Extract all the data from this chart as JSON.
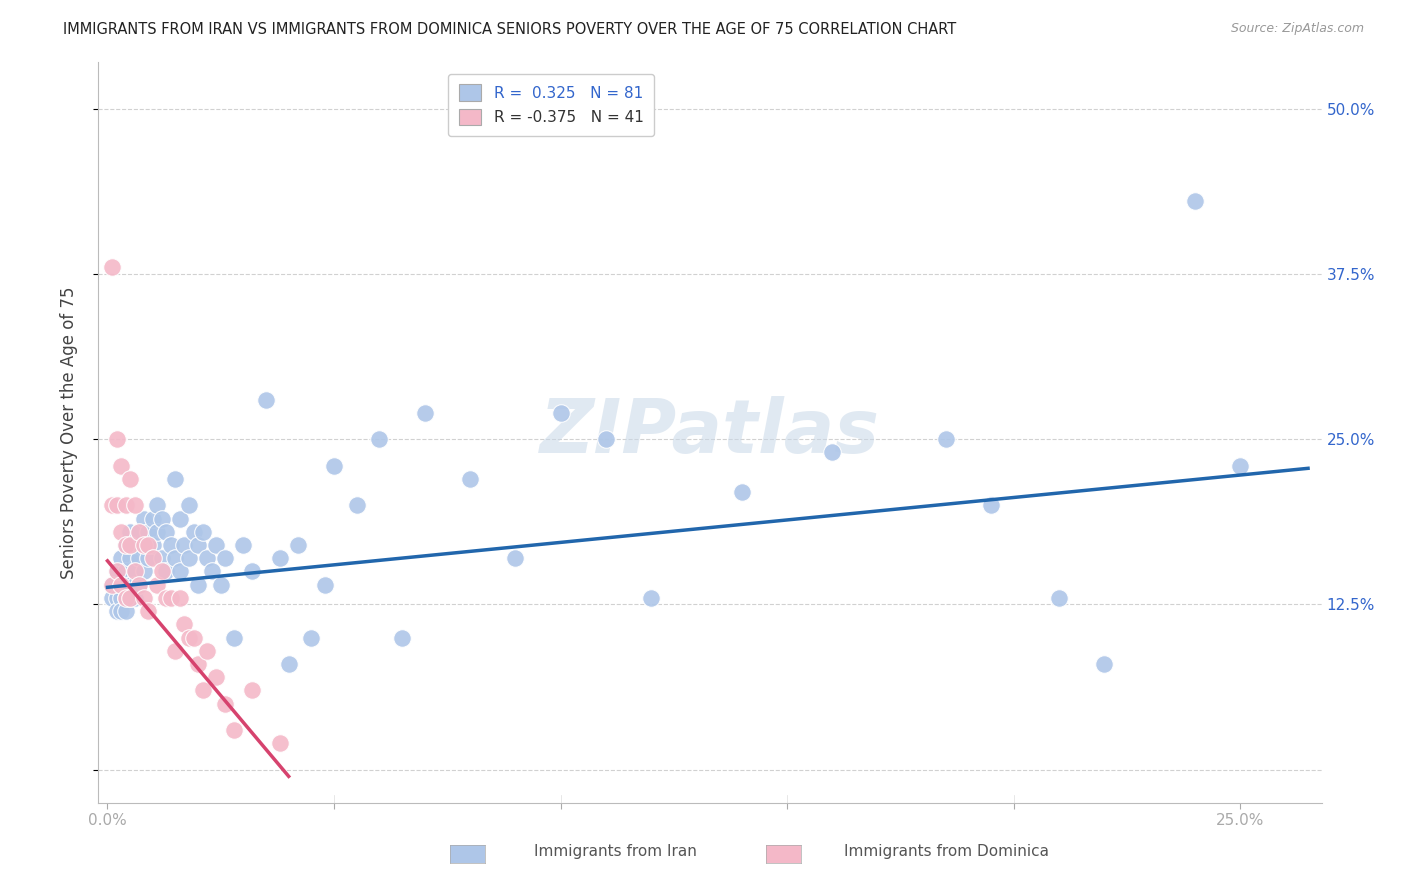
{
  "title": "IMMIGRANTS FROM IRAN VS IMMIGRANTS FROM DOMINICA SENIORS POVERTY OVER THE AGE OF 75 CORRELATION CHART",
  "source": "Source: ZipAtlas.com",
  "ylabel": "Seniors Poverty Over the Age of 75",
  "color_iran": "#aec6e8",
  "color_dominica": "#f4b8c8",
  "line_color_iran": "#2166ac",
  "line_color_dominica": "#d6436e",
  "background_color": "#ffffff",
  "watermark": "ZIPatlas",
  "watermark_color": "#c8d8e8",
  "grid_color": "#cccccc",
  "legend_iran_r": "0.325",
  "legend_iran_n": "81",
  "legend_dom_r": "-0.375",
  "legend_dom_n": "41",
  "iran_x": [
    0.001,
    0.001,
    0.002,
    0.002,
    0.002,
    0.003,
    0.003,
    0.003,
    0.003,
    0.004,
    0.004,
    0.004,
    0.004,
    0.005,
    0.005,
    0.005,
    0.005,
    0.006,
    0.006,
    0.006,
    0.006,
    0.007,
    0.007,
    0.007,
    0.008,
    0.008,
    0.008,
    0.009,
    0.009,
    0.01,
    0.01,
    0.011,
    0.011,
    0.012,
    0.012,
    0.013,
    0.013,
    0.014,
    0.015,
    0.015,
    0.016,
    0.016,
    0.017,
    0.018,
    0.018,
    0.019,
    0.02,
    0.02,
    0.021,
    0.022,
    0.023,
    0.024,
    0.025,
    0.026,
    0.028,
    0.03,
    0.032,
    0.035,
    0.038,
    0.04,
    0.042,
    0.045,
    0.048,
    0.05,
    0.055,
    0.06,
    0.065,
    0.07,
    0.08,
    0.09,
    0.1,
    0.11,
    0.12,
    0.14,
    0.16,
    0.185,
    0.195,
    0.21,
    0.22,
    0.24,
    0.25
  ],
  "iran_y": [
    0.14,
    0.13,
    0.15,
    0.13,
    0.12,
    0.16,
    0.14,
    0.13,
    0.12,
    0.17,
    0.15,
    0.13,
    0.12,
    0.18,
    0.16,
    0.14,
    0.13,
    0.17,
    0.15,
    0.14,
    0.13,
    0.18,
    0.16,
    0.14,
    0.19,
    0.17,
    0.15,
    0.18,
    0.16,
    0.19,
    0.17,
    0.2,
    0.18,
    0.16,
    0.19,
    0.18,
    0.15,
    0.17,
    0.22,
    0.16,
    0.19,
    0.15,
    0.17,
    0.2,
    0.16,
    0.18,
    0.17,
    0.14,
    0.18,
    0.16,
    0.15,
    0.17,
    0.14,
    0.16,
    0.1,
    0.17,
    0.15,
    0.28,
    0.16,
    0.08,
    0.17,
    0.1,
    0.14,
    0.23,
    0.2,
    0.25,
    0.1,
    0.27,
    0.22,
    0.16,
    0.27,
    0.25,
    0.13,
    0.21,
    0.24,
    0.25,
    0.2,
    0.13,
    0.08,
    0.43,
    0.23
  ],
  "dom_x": [
    0.001,
    0.001,
    0.001,
    0.002,
    0.002,
    0.002,
    0.003,
    0.003,
    0.003,
    0.004,
    0.004,
    0.004,
    0.005,
    0.005,
    0.005,
    0.006,
    0.006,
    0.007,
    0.007,
    0.008,
    0.008,
    0.009,
    0.009,
    0.01,
    0.011,
    0.012,
    0.013,
    0.014,
    0.015,
    0.016,
    0.017,
    0.018,
    0.019,
    0.02,
    0.021,
    0.022,
    0.024,
    0.026,
    0.028,
    0.032,
    0.038
  ],
  "dom_y": [
    0.38,
    0.2,
    0.14,
    0.25,
    0.2,
    0.15,
    0.23,
    0.18,
    0.14,
    0.2,
    0.17,
    0.13,
    0.22,
    0.17,
    0.13,
    0.2,
    0.15,
    0.18,
    0.14,
    0.17,
    0.13,
    0.17,
    0.12,
    0.16,
    0.14,
    0.15,
    0.13,
    0.13,
    0.09,
    0.13,
    0.11,
    0.1,
    0.1,
    0.08,
    0.06,
    0.09,
    0.07,
    0.05,
    0.03,
    0.06,
    0.02
  ],
  "iran_line_x0": 0.0,
  "iran_line_x1": 0.265,
  "iran_line_y0": 0.138,
  "iran_line_y1": 0.228,
  "dom_line_x0": 0.0,
  "dom_line_x1": 0.04,
  "dom_line_y0": 0.158,
  "dom_line_y1": -0.005,
  "xlim_min": -0.002,
  "xlim_max": 0.268,
  "ylim_min": -0.025,
  "ylim_max": 0.535,
  "x_ticks": [
    0.0,
    0.05,
    0.1,
    0.15,
    0.2,
    0.25
  ],
  "x_tick_labels": [
    "0.0%",
    "",
    "",
    "",
    "",
    "25.0%"
  ],
  "y_ticks": [
    0.0,
    0.125,
    0.25,
    0.375,
    0.5
  ],
  "y_tick_labels_right": [
    "",
    "12.5%",
    "25.0%",
    "37.5%",
    "50.0%"
  ]
}
